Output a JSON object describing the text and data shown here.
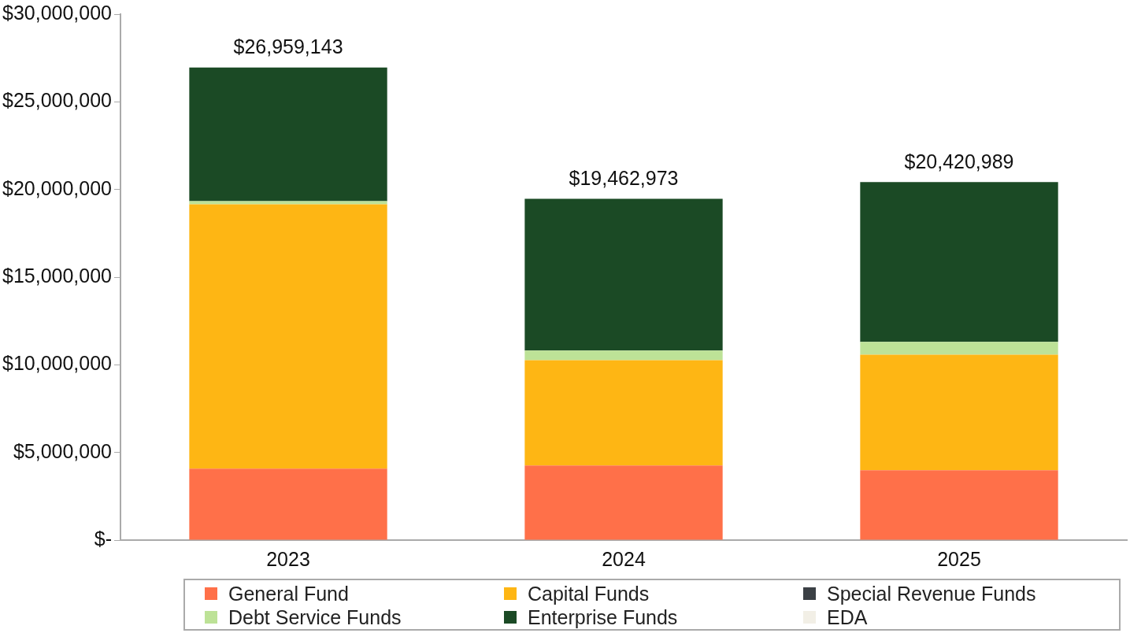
{
  "chart_data": {
    "type": "bar",
    "stacked": true,
    "categories": [
      "2023",
      "2024",
      "2025"
    ],
    "series": [
      {
        "name": "General Fund",
        "color": "#ff7049",
        "values": [
          4080000,
          4260000,
          3990000
        ]
      },
      {
        "name": "Capital Funds",
        "color": "#feb614",
        "values": [
          15070000,
          6000000,
          6590000
        ]
      },
      {
        "name": "Special Revenue Funds",
        "color": "#3b4045",
        "values": [
          0,
          0,
          0
        ]
      },
      {
        "name": "Debt Service Funds",
        "color": "#bde297",
        "values": [
          180000,
          550000,
          730000
        ]
      },
      {
        "name": "Enterprise Funds",
        "color": "#1b4a25",
        "values": [
          7629143,
          8652973,
          9110989
        ]
      },
      {
        "name": "EDA",
        "color": "#f2efe6",
        "values": [
          0,
          0,
          0
        ]
      }
    ],
    "totals": [
      "$26,959,143",
      "$19,462,973",
      "$20,420,989"
    ],
    "ylim": [
      0,
      30000000
    ],
    "yticks": [
      {
        "value": 0,
        "label": "$-"
      },
      {
        "value": 5000000,
        "label": "$5,000,000"
      },
      {
        "value": 10000000,
        "label": "$10,000,000"
      },
      {
        "value": 15000000,
        "label": "$15,000,000"
      },
      {
        "value": 20000000,
        "label": "$20,000,000"
      },
      {
        "value": 25000000,
        "label": "$25,000,000"
      },
      {
        "value": 30000000,
        "label": "$30,000,000"
      }
    ],
    "grid": false,
    "legend": "bottom"
  }
}
